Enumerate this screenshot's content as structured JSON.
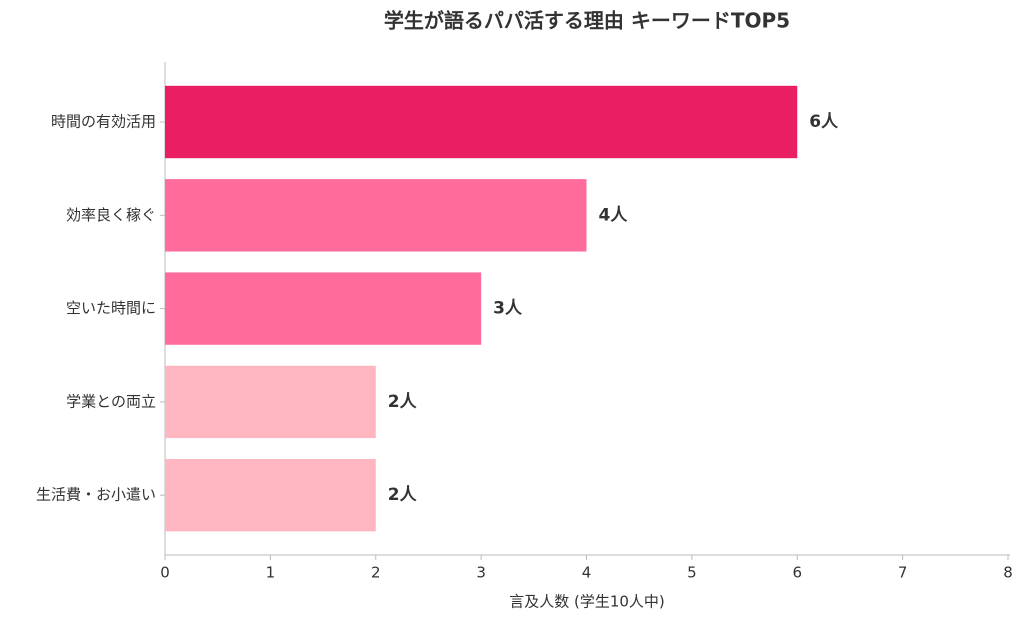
{
  "chart_data": {
    "type": "bar",
    "orientation": "horizontal",
    "title": "学生が語るパパ活する理由 キーワードTOP5",
    "x_label": "言及人数 (学生10人中)",
    "categories": [
      "時間の有効活用",
      "効率良く稼ぐ",
      "空いた時間に",
      "学業との両立",
      "生活費・お小遣い"
    ],
    "values": [
      6,
      4,
      3,
      2,
      2
    ],
    "value_labels": [
      "6人",
      "4人",
      "3人",
      "2人",
      "2人"
    ],
    "colors": [
      "#e91e63",
      "#ff6b9a",
      "#ff6b9a",
      "#ffb6c1",
      "#ffb6c1"
    ],
    "xlim": [
      0,
      8
    ],
    "xticks": [
      0,
      1,
      2,
      3,
      4,
      5,
      6,
      7,
      8
    ],
    "grid": false
  }
}
